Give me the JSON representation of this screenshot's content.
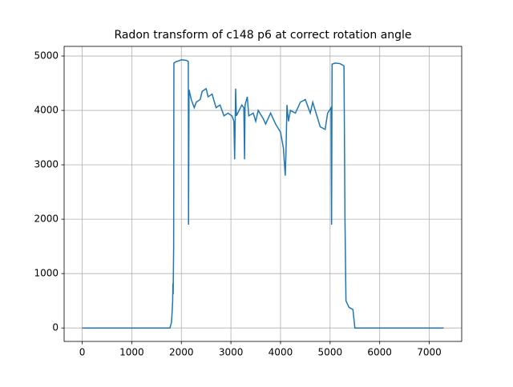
{
  "chart_data": {
    "type": "line",
    "title": "Radon transform of c148 p6 at correct rotation angle",
    "x": [
      0,
      500,
      1000,
      1500,
      1770,
      1800,
      1815,
      1825,
      1830,
      1835,
      1845,
      1850,
      1900,
      1950,
      2000,
      2100,
      2140,
      2145,
      2155,
      2200,
      2260,
      2300,
      2380,
      2420,
      2500,
      2540,
      2620,
      2700,
      2780,
      2860,
      2940,
      3020,
      3060,
      3075,
      3095,
      3110,
      3220,
      3260,
      3275,
      3285,
      3330,
      3360,
      3450,
      3500,
      3550,
      3650,
      3700,
      3800,
      3900,
      4000,
      4060,
      4095,
      4110,
      4130,
      4160,
      4200,
      4300,
      4400,
      4500,
      4600,
      4650,
      4750,
      4800,
      4900,
      4950,
      5020,
      5030,
      5040,
      5100,
      5200,
      5280,
      5300,
      5320,
      5380,
      5460,
      5500,
      6000,
      7290
    ],
    "series": [
      {
        "color": "#1f77b4",
        "values": [
          0,
          0,
          0,
          0,
          0,
          100,
          300,
          500,
          820,
          620,
          1500,
          4870,
          4900,
          4910,
          4930,
          4920,
          4900,
          1900,
          4380,
          4200,
          4050,
          4150,
          4200,
          4350,
          4400,
          4250,
          4300,
          4050,
          4100,
          3900,
          3950,
          3900,
          3800,
          3100,
          4400,
          3900,
          4100,
          4050,
          3100,
          4100,
          4250,
          3900,
          3950,
          3800,
          4000,
          3850,
          3750,
          3950,
          3750,
          3600,
          3300,
          2800,
          3200,
          4100,
          3800,
          4000,
          3950,
          4150,
          4200,
          3950,
          4150,
          3850,
          3700,
          3650,
          3950,
          4050,
          1900,
          4850,
          4870,
          4860,
          4820,
          2000,
          500,
          380,
          340,
          0,
          0,
          0
        ]
      }
    ],
    "xlim": [
      -364,
      7654
    ],
    "ylim": [
      -247,
      5177
    ],
    "xticks": [
      0,
      1000,
      2000,
      3000,
      4000,
      5000,
      6000,
      7000
    ],
    "yticks": [
      0,
      1000,
      2000,
      3000,
      4000,
      5000
    ],
    "grid": true
  }
}
